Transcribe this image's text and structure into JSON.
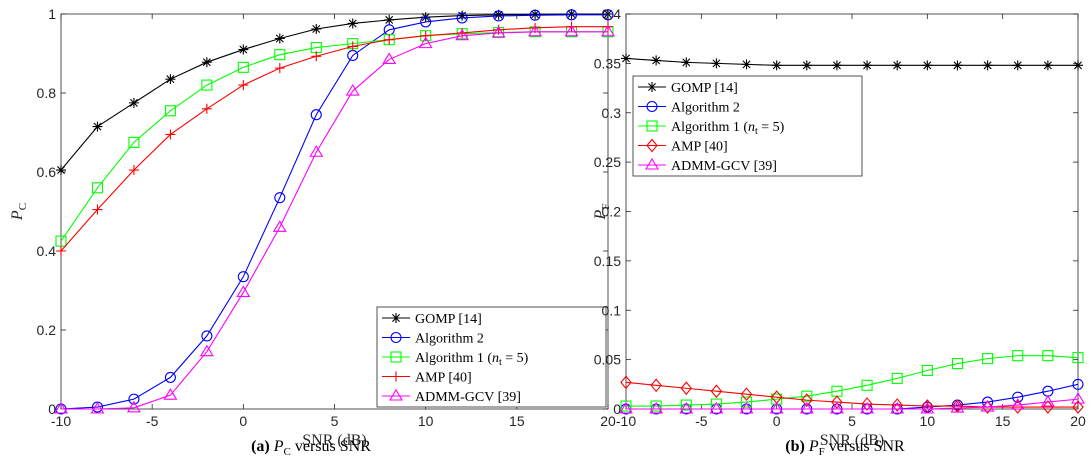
{
  "chart_data": [
    {
      "type": "line",
      "panel_id": "a",
      "caption": {
        "label": "(a)",
        "symbol": "P",
        "subscript": "C",
        "rest": " versus SNR"
      },
      "xlabel": "SNR (dB)",
      "ylabel": {
        "symbol": "P",
        "subscript": "C"
      },
      "xlim": [
        -10,
        20
      ],
      "ylim": [
        0,
        1
      ],
      "xticks": [
        -10,
        -5,
        0,
        5,
        10,
        15,
        20
      ],
      "yticks": [
        0,
        0.2,
        0.4,
        0.6,
        0.8,
        1
      ],
      "ytick_labels": [
        "0",
        "0.2",
        "0.4",
        "0.6",
        "0.8",
        "1"
      ],
      "grid": false,
      "legend_position": "bottom-right",
      "x": [
        -10,
        -8,
        -6,
        -4,
        -2,
        0,
        2,
        4,
        6,
        8,
        10,
        12,
        14,
        16,
        18,
        20
      ],
      "series": [
        {
          "name": "GOMP [14]",
          "color": "#000000",
          "marker": "asterisk",
          "values": [
            0.605,
            0.715,
            0.775,
            0.835,
            0.878,
            0.91,
            0.938,
            0.962,
            0.976,
            0.985,
            0.992,
            0.996,
            0.998,
            0.999,
            1.0,
            1.0
          ]
        },
        {
          "name": "Algorithm 2",
          "color": "#0000ff",
          "marker": "circle",
          "values": [
            0.0,
            0.005,
            0.025,
            0.08,
            0.185,
            0.335,
            0.535,
            0.745,
            0.895,
            0.96,
            0.98,
            0.99,
            0.995,
            0.997,
            0.998,
            0.998
          ]
        },
        {
          "name": "Algorithm 1 (n_t = 5)",
          "legend": {
            "pre": "Algorithm 1 (",
            "symbol": "n",
            "subscript": "t",
            "post": " = 5)"
          },
          "color": "#00ff00",
          "marker": "square",
          "values": [
            0.425,
            0.56,
            0.675,
            0.755,
            0.82,
            0.865,
            0.897,
            0.915,
            0.925,
            0.935,
            0.945,
            0.95,
            0.953,
            0.955,
            0.955,
            0.955
          ]
        },
        {
          "name": "AMP [40]",
          "color": "#ff0000",
          "marker": "plus",
          "values": [
            0.4,
            0.505,
            0.605,
            0.695,
            0.76,
            0.82,
            0.863,
            0.893,
            0.918,
            0.935,
            0.945,
            0.952,
            0.96,
            0.965,
            0.968,
            0.968
          ]
        },
        {
          "name": "ADMM-GCV [39]",
          "color": "#ff00ff",
          "marker": "triangle",
          "values": [
            0.0,
            0.0,
            0.003,
            0.035,
            0.145,
            0.295,
            0.46,
            0.65,
            0.805,
            0.885,
            0.925,
            0.945,
            0.952,
            0.955,
            0.955,
            0.955
          ]
        }
      ]
    },
    {
      "type": "line",
      "panel_id": "b",
      "caption": {
        "label": "(b)",
        "symbol": "P",
        "subscript": "F",
        "rest": " versus SNR"
      },
      "xlabel": "SNR (dB)",
      "ylabel": {
        "symbol": "P",
        "subscript": "F"
      },
      "xlim": [
        -10,
        20
      ],
      "ylim": [
        0,
        0.4
      ],
      "xticks": [
        -10,
        -5,
        0,
        5,
        10,
        15,
        20
      ],
      "yticks": [
        0,
        0.05,
        0.1,
        0.15,
        0.2,
        0.25,
        0.3,
        0.35,
        0.4
      ],
      "ytick_labels": [
        "0",
        "0.05",
        "0.1",
        "0.15",
        "0.2",
        "0.25",
        "0.3",
        "0.35",
        "0.4"
      ],
      "grid": false,
      "legend_position": "top-left",
      "x": [
        -10,
        -8,
        -6,
        -4,
        -2,
        0,
        2,
        4,
        6,
        8,
        10,
        12,
        14,
        16,
        18,
        20
      ],
      "series": [
        {
          "name": "GOMP [14]",
          "color": "#000000",
          "marker": "asterisk",
          "values": [
            0.355,
            0.353,
            0.351,
            0.35,
            0.349,
            0.348,
            0.348,
            0.348,
            0.348,
            0.348,
            0.348,
            0.348,
            0.348,
            0.348,
            0.348,
            0.348
          ]
        },
        {
          "name": "Algorithm 2",
          "color": "#0000ff",
          "marker": "circle",
          "values": [
            0.0,
            0.0,
            0.0,
            0.0,
            0.0,
            0.0,
            0.0,
            0.0,
            0.0,
            0.0,
            0.002,
            0.004,
            0.007,
            0.012,
            0.018,
            0.025
          ]
        },
        {
          "name": "Algorithm 1 (n_t = 5)",
          "legend": {
            "pre": "Algorithm 1 (",
            "symbol": "n",
            "subscript": "t",
            "post": " = 5)"
          },
          "color": "#00ff00",
          "marker": "square",
          "values": [
            0.003,
            0.003,
            0.004,
            0.005,
            0.007,
            0.01,
            0.013,
            0.018,
            0.024,
            0.031,
            0.039,
            0.046,
            0.051,
            0.054,
            0.054,
            0.052
          ]
        },
        {
          "name": "AMP [40]",
          "color": "#ff0000",
          "marker": "diamond",
          "values": [
            0.027,
            0.024,
            0.021,
            0.018,
            0.015,
            0.012,
            0.009,
            0.007,
            0.005,
            0.004,
            0.003,
            0.003,
            0.002,
            0.002,
            0.002,
            0.002
          ]
        },
        {
          "name": "ADMM-GCV [39]",
          "color": "#ff00ff",
          "marker": "triangle",
          "values": [
            0.0,
            0.0,
            0.0,
            0.0,
            0.0,
            0.0,
            0.0,
            0.0,
            0.0,
            0.0,
            0.0,
            0.001,
            0.002,
            0.004,
            0.007,
            0.01
          ]
        }
      ]
    }
  ]
}
